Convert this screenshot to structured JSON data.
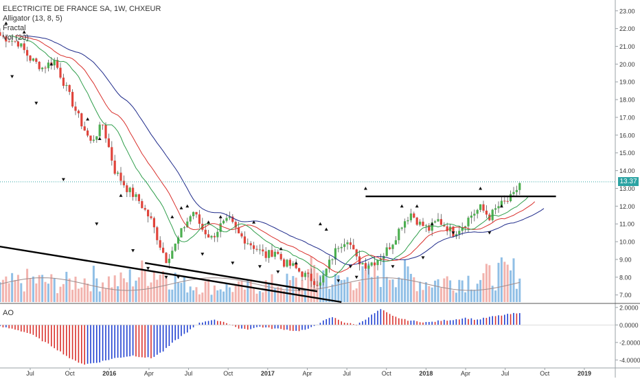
{
  "legend": {
    "title": "ELECTRICITE DE FRANCE SA, 1W, CHXEUR",
    "alligator": "Alligator (13, 8, 5)",
    "fractal": "Fractal",
    "vol": "Vol (20)"
  },
  "last_price": "13.37",
  "ao_label": "AO",
  "colors": {
    "up": "#4caf50",
    "down": "#e0443b",
    "vol_up": "#90bfe6",
    "vol_down": "#f2b3ae",
    "jaw": "#1e2a8a",
    "teeth": "#d9302c",
    "lips": "#2e9d4a",
    "ao_up": "#1f3fd1",
    "ao_down": "#d9302c",
    "price_line": "#2ca3a3"
  },
  "chart_data": [
    {
      "type": "candlestick",
      "title": "ELECTRICITE DE FRANCE SA, 1W, CHXEUR",
      "x_ticks": [
        "Jul",
        "Oct",
        "2016",
        "Apr",
        "Jul",
        "Oct",
        "2017",
        "Apr",
        "Jul",
        "Oct",
        "2018",
        "Apr",
        "Jul",
        "Oct",
        "2019"
      ],
      "y_ticks": [
        "23.00",
        "22.00",
        "21.00",
        "20.00",
        "19.00",
        "18.00",
        "17.00",
        "16.00",
        "15.00",
        "14.00",
        "13.00",
        "12.00",
        "11.00",
        "10.00",
        "9.00",
        "8.00",
        "7.00"
      ],
      "ylim": [
        6.6,
        23.3
      ],
      "last_value": 13.37,
      "price_path": [
        [
          0,
          21.6
        ],
        [
          6,
          21.2
        ],
        [
          10,
          20.3
        ],
        [
          14,
          19.8
        ],
        [
          18,
          20.2
        ],
        [
          22,
          18.6
        ],
        [
          26,
          17.0
        ],
        [
          30,
          15.6
        ],
        [
          34,
          16.6
        ],
        [
          38,
          14.0
        ],
        [
          42,
          13.0
        ],
        [
          46,
          12.3
        ],
        [
          50,
          11.2
        ],
        [
          53,
          9.8
        ],
        [
          55,
          9.0
        ],
        [
          58,
          9.8
        ],
        [
          61,
          10.9
        ],
        [
          64,
          11.7
        ],
        [
          67,
          10.7
        ],
        [
          70,
          10.2
        ],
        [
          73,
          10.9
        ],
        [
          76,
          11.2
        ],
        [
          79,
          10.4
        ],
        [
          82,
          10.0
        ],
        [
          85,
          9.6
        ],
        [
          88,
          9.2
        ],
        [
          91,
          9.5
        ],
        [
          94,
          8.8
        ],
        [
          97,
          8.6
        ],
        [
          100,
          8.2
        ],
        [
          103,
          7.9
        ],
        [
          106,
          7.6
        ],
        [
          109,
          8.8
        ],
        [
          112,
          9.8
        ],
        [
          115,
          10.2
        ],
        [
          118,
          9.0
        ],
        [
          121,
          8.7
        ],
        [
          124,
          8.9
        ],
        [
          127,
          9.3
        ],
        [
          130,
          10.0
        ],
        [
          133,
          11.0
        ],
        [
          136,
          11.6
        ],
        [
          139,
          11.0
        ],
        [
          142,
          10.7
        ],
        [
          145,
          11.2
        ],
        [
          148,
          10.8
        ],
        [
          150,
          10.5
        ],
        [
          153,
          10.9
        ],
        [
          156,
          11.5
        ],
        [
          159,
          11.9
        ],
        [
          162,
          11.4
        ],
        [
          165,
          12.0
        ],
        [
          168,
          12.3
        ],
        [
          170,
          12.6
        ],
        [
          172,
          13.3
        ]
      ],
      "volume_path": [
        [
          0,
          0.8
        ],
        [
          10,
          1.1
        ],
        [
          20,
          0.9
        ],
        [
          30,
          1.2
        ],
        [
          40,
          1.0
        ],
        [
          50,
          1.6
        ],
        [
          55,
          1.5
        ],
        [
          60,
          0.9
        ],
        [
          70,
          0.8
        ],
        [
          80,
          0.7
        ],
        [
          90,
          0.9
        ],
        [
          100,
          1.0
        ],
        [
          105,
          1.8
        ],
        [
          110,
          1.0
        ],
        [
          120,
          1.2
        ],
        [
          130,
          1.6
        ],
        [
          135,
          1.3
        ],
        [
          140,
          1.0
        ],
        [
          150,
          1.1
        ],
        [
          160,
          1.2
        ],
        [
          165,
          1.4
        ],
        [
          172,
          1.5
        ]
      ],
      "volume_ma_level": 1.0,
      "up_fractals": [
        [
          2,
          22.3
        ],
        [
          8,
          21.8
        ],
        [
          17,
          20.0
        ],
        [
          29,
          16.9
        ],
        [
          33,
          15.8
        ],
        [
          40,
          12.6
        ],
        [
          57,
          11.4
        ],
        [
          60,
          11.9
        ],
        [
          62,
          12.0
        ],
        [
          69,
          11.1
        ],
        [
          73,
          11.4
        ],
        [
          84,
          11.1
        ],
        [
          93,
          9.6
        ],
        [
          98,
          8.8
        ],
        [
          106,
          11.0
        ],
        [
          108,
          10.7
        ],
        [
          121,
          13.0
        ],
        [
          133,
          12.0
        ],
        [
          138,
          12.0
        ],
        [
          143,
          11.0
        ],
        [
          159,
          13.0
        ],
        [
          166,
          12.0
        ]
      ],
      "down_fractals": [
        [
          4,
          19.3
        ],
        [
          12,
          17.8
        ],
        [
          21,
          13.5
        ],
        [
          32,
          11.0
        ],
        [
          44,
          9.5
        ],
        [
          49,
          8.5
        ],
        [
          55,
          8.0
        ],
        [
          59,
          8.0
        ],
        [
          67,
          9.3
        ],
        [
          77,
          8.8
        ],
        [
          86,
          8.6
        ],
        [
          92,
          8.3
        ],
        [
          99,
          7.3
        ],
        [
          112,
          7.8
        ],
        [
          116,
          8.6
        ],
        [
          118,
          8.0
        ],
        [
          130,
          8.6
        ],
        [
          140,
          9.1
        ],
        [
          150,
          10.5
        ],
        [
          162,
          10.5
        ]
      ],
      "trendlines": [
        {
          "from": [
            -10,
            10.0
          ],
          "to": [
            113,
            6.6
          ]
        },
        {
          "from": [
            48,
            8.8
          ],
          "to": [
            105,
            7.2
          ]
        },
        {
          "from": [
            121,
            12.55
          ],
          "to": [
            184,
            12.55
          ]
        }
      ]
    },
    {
      "type": "bar",
      "title": "AO",
      "y_ticks": [
        "2.0000",
        "0.0000",
        "-2.0000",
        "-4.0000"
      ],
      "ylim": [
        -4.6,
        2.3
      ],
      "path": [
        [
          0,
          -0.2
        ],
        [
          5,
          -0.5
        ],
        [
          10,
          -1.0
        ],
        [
          18,
          -2.6
        ],
        [
          24,
          -4.0
        ],
        [
          28,
          -4.5
        ],
        [
          32,
          -4.3
        ],
        [
          38,
          -3.8
        ],
        [
          44,
          -3.5
        ],
        [
          50,
          -3.8
        ],
        [
          54,
          -3.0
        ],
        [
          58,
          -1.8
        ],
        [
          62,
          -0.8
        ],
        [
          66,
          0.2
        ],
        [
          70,
          0.6
        ],
        [
          74,
          0.4
        ],
        [
          78,
          -0.3
        ],
        [
          82,
          -0.5
        ],
        [
          86,
          -0.2
        ],
        [
          90,
          -0.4
        ],
        [
          94,
          -0.5
        ],
        [
          98,
          -0.7
        ],
        [
          102,
          -0.5
        ],
        [
          106,
          0.3
        ],
        [
          110,
          0.9
        ],
        [
          114,
          0.3
        ],
        [
          118,
          0.0
        ],
        [
          122,
          0.9
        ],
        [
          126,
          1.8
        ],
        [
          130,
          1.0
        ],
        [
          134,
          0.6
        ],
        [
          138,
          0.4
        ],
        [
          142,
          0.3
        ],
        [
          146,
          0.5
        ],
        [
          150,
          0.6
        ],
        [
          154,
          0.8
        ],
        [
          158,
          0.6
        ],
        [
          162,
          0.9
        ],
        [
          166,
          1.1
        ],
        [
          170,
          1.3
        ]
      ]
    }
  ]
}
